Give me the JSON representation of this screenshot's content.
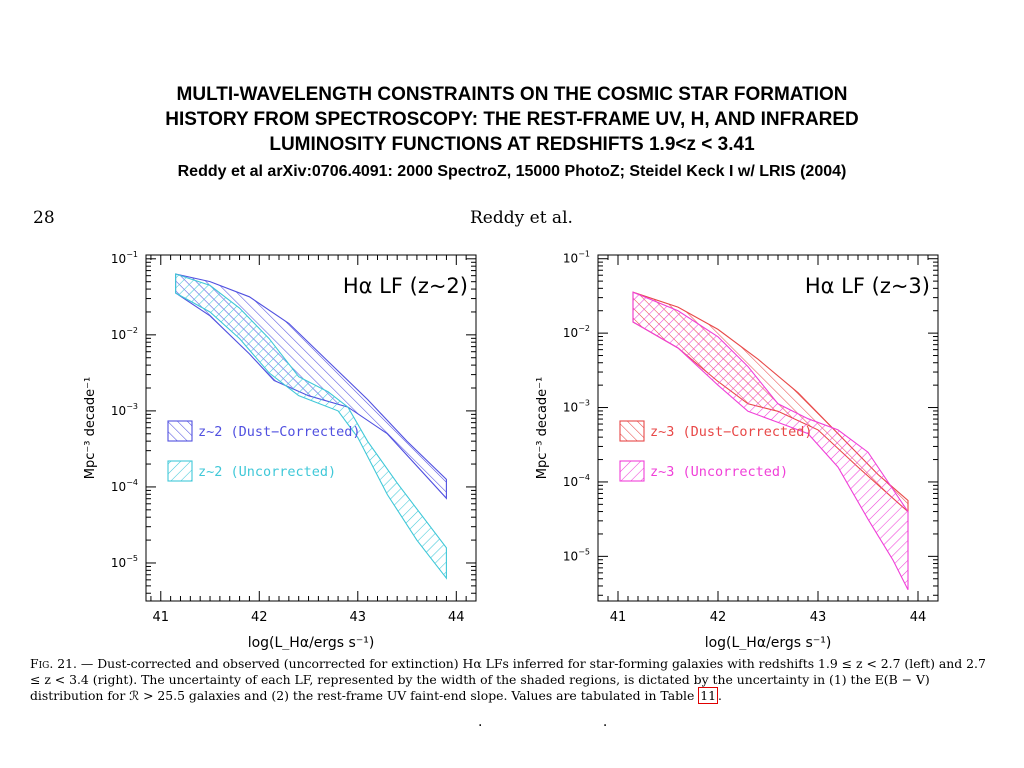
{
  "slide": {
    "title_lines": [
      "MULTI-WAVELENGTH CONSTRAINTS ON THE COSMIC STAR FORMATION",
      "HISTORY FROM SPECTROSCOPY: THE REST-FRAME UV, H, AND INFRARED",
      "LUMINOSITY FUNCTIONS AT REDSHIFTS 1.9<z < 3.41"
    ],
    "subtitle": "Reddy et al arXiv:0706.4091: 2000 SpectroZ, 15000 PhotoZ; Steidel Keck I w/ LRIS (2004)"
  },
  "page": {
    "number": "28",
    "running_head": "Reddy et al."
  },
  "caption": {
    "fig_label": "Fig. 21.",
    "text_1": "— Dust-corrected and observed (uncorrected for extinction) Hα LFs inferred for star-forming galaxies with redshifts 1.9 ≤ z < 2.7 (left) and 2.7 ≤ z < 3.4 (right). The uncertainty of each LF, represented by the width of the shaded regions, is dictated by the uncertainty in (1) the E(B − V) distribution for ℛ > 25.5 galaxies and (2) the rest-frame UV faint-end slope. Values are tabulated in Table ",
    "table_ref": "11",
    "text_2": "."
  },
  "footer": {
    "dots": ". ."
  },
  "chart_data": [
    {
      "type": "area",
      "title": "Hα LF  (z~2)",
      "xlabel": "log(L_Hα/ergs s⁻¹)",
      "ylabel": "Mpc⁻³ decade⁻¹",
      "xlim": [
        40.85,
        44.2
      ],
      "ylim_log10": [
        -5.5,
        -0.95
      ],
      "y_scale": "log",
      "x_ticks": [
        "41",
        "42",
        "43",
        "44"
      ],
      "y_ticks": [
        {
          "base": "10",
          "exp": "−1",
          "v": -1
        },
        {
          "base": "10",
          "exp": "−2",
          "v": -2
        },
        {
          "base": "10",
          "exp": "−3",
          "v": -3
        },
        {
          "base": "10",
          "exp": "−4",
          "v": -4
        },
        {
          "base": "10",
          "exp": "−5",
          "v": -5
        }
      ],
      "legend_position": "bottom-left",
      "series": [
        {
          "name": "z~2 (Dust−Corrected)",
          "color": "#5050e0",
          "hatch": "backslash",
          "upper": [
            [
              41.15,
              -1.2
            ],
            [
              41.5,
              -1.3
            ],
            [
              41.9,
              -1.5
            ],
            [
              42.3,
              -1.85
            ],
            [
              42.7,
              -2.35
            ],
            [
              43.1,
              -2.85
            ],
            [
              43.5,
              -3.4
            ],
            [
              43.9,
              -3.9
            ]
          ],
          "lower": [
            [
              41.15,
              -1.45
            ],
            [
              41.5,
              -1.75
            ],
            [
              41.9,
              -2.25
            ],
            [
              42.15,
              -2.6
            ],
            [
              42.5,
              -2.8
            ],
            [
              42.9,
              -2.95
            ],
            [
              43.3,
              -3.3
            ],
            [
              43.9,
              -4.15
            ]
          ]
        },
        {
          "name": "z~2 (Uncorrected)",
          "color": "#40c8d8",
          "hatch": "slash",
          "upper": [
            [
              41.15,
              -1.2
            ],
            [
              41.5,
              -1.35
            ],
            [
              41.8,
              -1.65
            ],
            [
              42.1,
              -2.05
            ],
            [
              42.4,
              -2.55
            ],
            [
              42.7,
              -2.75
            ],
            [
              42.9,
              -2.95
            ],
            [
              43.1,
              -3.4
            ],
            [
              43.4,
              -3.95
            ],
            [
              43.9,
              -4.8
            ]
          ],
          "lower": [
            [
              41.15,
              -1.45
            ],
            [
              41.5,
              -1.7
            ],
            [
              41.8,
              -2.05
            ],
            [
              42.1,
              -2.5
            ],
            [
              42.4,
              -2.8
            ],
            [
              42.8,
              -3.0
            ],
            [
              43.0,
              -3.35
            ],
            [
              43.3,
              -4.1
            ],
            [
              43.6,
              -4.7
            ],
            [
              43.9,
              -5.2
            ]
          ]
        }
      ]
    },
    {
      "type": "area",
      "title": "Hα LF  (z~3)",
      "xlabel": "log(L_Hα/ergs s⁻¹)",
      "ylabel": "Mpc⁻³ decade⁻¹",
      "xlim": [
        40.8,
        44.2
      ],
      "ylim_log10": [
        -5.6,
        -0.95
      ],
      "y_scale": "log",
      "x_ticks": [
        "41",
        "42",
        "43",
        "44"
      ],
      "y_ticks": [
        {
          "base": "10",
          "exp": "−1",
          "v": -1
        },
        {
          "base": "10",
          "exp": "−2",
          "v": -2
        },
        {
          "base": "10",
          "exp": "−3",
          "v": -3
        },
        {
          "base": "10",
          "exp": "−4",
          "v": -4
        },
        {
          "base": "10",
          "exp": "−5",
          "v": -5
        }
      ],
      "legend_position": "bottom-left",
      "series": [
        {
          "name": "z~3 (Dust−Corrected)",
          "color": "#e84848",
          "hatch": "backslash",
          "upper": [
            [
              41.15,
              -1.45
            ],
            [
              41.6,
              -1.65
            ],
            [
              42.0,
              -1.95
            ],
            [
              42.4,
              -2.35
            ],
            [
              42.8,
              -2.8
            ],
            [
              43.2,
              -3.35
            ],
            [
              43.6,
              -3.9
            ],
            [
              43.9,
              -4.25
            ]
          ],
          "lower": [
            [
              41.15,
              -1.85
            ],
            [
              41.6,
              -2.2
            ],
            [
              42.0,
              -2.65
            ],
            [
              42.3,
              -2.95
            ],
            [
              42.6,
              -3.05
            ],
            [
              43.0,
              -3.3
            ],
            [
              43.4,
              -3.8
            ],
            [
              43.9,
              -4.4
            ]
          ]
        },
        {
          "name": "z~3 (Uncorrected)",
          "color": "#f040d8",
          "hatch": "slash",
          "upper": [
            [
              41.15,
              -1.45
            ],
            [
              41.6,
              -1.7
            ],
            [
              42.0,
              -2.05
            ],
            [
              42.3,
              -2.45
            ],
            [
              42.6,
              -2.95
            ],
            [
              42.9,
              -3.15
            ],
            [
              43.2,
              -3.3
            ],
            [
              43.5,
              -3.6
            ],
            [
              43.9,
              -4.4
            ]
          ],
          "lower": [
            [
              41.15,
              -1.85
            ],
            [
              41.6,
              -2.2
            ],
            [
              42.0,
              -2.7
            ],
            [
              42.3,
              -3.05
            ],
            [
              42.6,
              -3.2
            ],
            [
              42.9,
              -3.35
            ],
            [
              43.2,
              -3.8
            ],
            [
              43.5,
              -4.5
            ],
            [
              43.75,
              -5.05
            ],
            [
              43.9,
              -5.45
            ]
          ]
        }
      ]
    }
  ]
}
